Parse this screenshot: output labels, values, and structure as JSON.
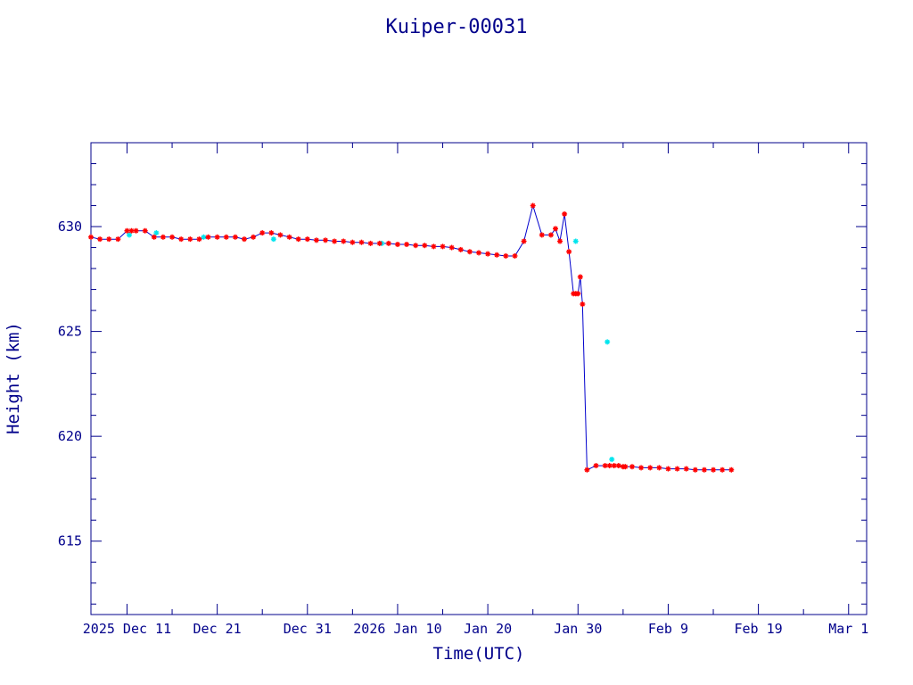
{
  "chart_data": {
    "type": "scatter",
    "title": "Kuiper-00031",
    "xlabel": "Time(UTC)",
    "ylabel": "Height (km)",
    "x_unit": "date",
    "xlim": [
      "2025-12-07",
      "2026-03-03"
    ],
    "ylim": [
      611.5,
      634
    ],
    "x_ticks": [
      {
        "date": "2025-12-11",
        "label": "2025 Dec 11"
      },
      {
        "date": "2025-12-21",
        "label": "Dec 21"
      },
      {
        "date": "2025-12-31",
        "label": "Dec 31"
      },
      {
        "date": "2026-01-10",
        "label": "2026 Jan 10"
      },
      {
        "date": "2026-01-20",
        "label": "Jan 20"
      },
      {
        "date": "2026-01-30",
        "label": "Jan 30"
      },
      {
        "date": "2026-02-09",
        "label": "Feb  9"
      },
      {
        "date": "2026-02-19",
        "label": "Feb 19"
      },
      {
        "date": "2026-03-01",
        "label": "Mar  1"
      }
    ],
    "y_ticks": [
      615,
      620,
      625,
      630
    ],
    "grid": false,
    "colors": {
      "axes": "#00008b",
      "line": "#0000cd",
      "marker_primary": "#ff0000",
      "marker_secondary": "#00e5ee"
    },
    "series": [
      {
        "marker": "star",
        "color": "#ff0000",
        "x": [
          "2025-12-07",
          "2025-12-08",
          "2025-12-09",
          "2025-12-10",
          "2025-12-11",
          "2025-12-11T12",
          "2025-12-12",
          "2025-12-13",
          "2025-12-14",
          "2025-12-15",
          "2025-12-16",
          "2025-12-17",
          "2025-12-18",
          "2025-12-19",
          "2025-12-20",
          "2025-12-21",
          "2025-12-22",
          "2025-12-23",
          "2025-12-24",
          "2025-12-25",
          "2025-12-26",
          "2025-12-27",
          "2025-12-28",
          "2025-12-29",
          "2025-12-30",
          "2025-12-31",
          "2026-01-01",
          "2026-01-02",
          "2026-01-03",
          "2026-01-04",
          "2026-01-05",
          "2026-01-06",
          "2026-01-07",
          "2026-01-08",
          "2026-01-09",
          "2026-01-10",
          "2026-01-11",
          "2026-01-12",
          "2026-01-13",
          "2026-01-14",
          "2026-01-15",
          "2026-01-16",
          "2026-01-17",
          "2026-01-18",
          "2026-01-19",
          "2026-01-20",
          "2026-01-21",
          "2026-01-22",
          "2026-01-23",
          "2026-01-24",
          "2026-01-25",
          "2026-01-26",
          "2026-01-27",
          "2026-01-27T12",
          "2026-01-28",
          "2026-01-28T12",
          "2026-01-29",
          "2026-01-29T12",
          "2026-01-29T18",
          "2026-01-30",
          "2026-01-30T06",
          "2026-01-30T12",
          "2026-01-31",
          "2026-02-01",
          "2026-02-02",
          "2026-02-02T12",
          "2026-02-03",
          "2026-02-03T12",
          "2026-02-04",
          "2026-02-04T06",
          "2026-02-05",
          "2026-02-06",
          "2026-02-07",
          "2026-02-08",
          "2026-02-09",
          "2026-02-10",
          "2026-02-11",
          "2026-02-12",
          "2026-02-13",
          "2026-02-14",
          "2026-02-15",
          "2026-02-16"
        ],
        "y": [
          629.5,
          629.4,
          629.4,
          629.4,
          629.8,
          629.8,
          629.8,
          629.8,
          629.5,
          629.5,
          629.5,
          629.4,
          629.4,
          629.4,
          629.5,
          629.5,
          629.5,
          629.5,
          629.4,
          629.5,
          629.7,
          629.7,
          629.6,
          629.5,
          629.4,
          629.4,
          629.35,
          629.35,
          629.3,
          629.3,
          629.25,
          629.25,
          629.2,
          629.2,
          629.2,
          629.15,
          629.15,
          629.1,
          629.1,
          629.05,
          629.05,
          629.0,
          628.9,
          628.8,
          628.75,
          628.7,
          628.65,
          628.6,
          628.6,
          629.3,
          631.0,
          629.6,
          629.6,
          629.9,
          629.3,
          630.6,
          628.8,
          626.8,
          626.8,
          626.8,
          627.6,
          626.3,
          618.4,
          618.6,
          618.6,
          618.6,
          618.6,
          618.6,
          618.55,
          618.55,
          618.55,
          618.5,
          618.5,
          618.5,
          618.45,
          618.45,
          618.45,
          618.4,
          618.4,
          618.4,
          618.4,
          618.4
        ]
      },
      {
        "marker": "star",
        "color": "#00e5ee",
        "x": [
          "2025-12-11T06",
          "2025-12-14T06",
          "2025-12-19T12",
          "2025-12-27T06",
          "2026-01-08T06",
          "2026-01-29T18",
          "2026-02-02T06",
          "2026-02-02T18"
        ],
        "y": [
          629.6,
          629.7,
          629.5,
          629.4,
          629.2,
          629.3,
          624.5,
          618.9
        ]
      }
    ]
  }
}
